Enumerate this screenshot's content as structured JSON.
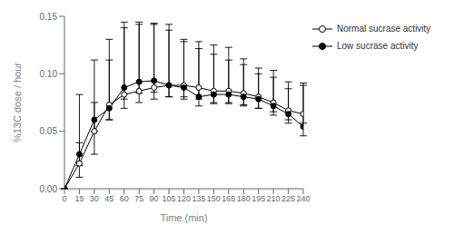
{
  "chart_data": {
    "type": "line",
    "xlabel": "Time (min)",
    "ylabel": "%13C dose / hour",
    "x": [
      0,
      15,
      30,
      45,
      60,
      75,
      90,
      105,
      120,
      135,
      150,
      165,
      180,
      195,
      210,
      225,
      240
    ],
    "xlim": [
      0,
      240
    ],
    "xticks": [
      0,
      15,
      30,
      45,
      60,
      75,
      90,
      105,
      120,
      135,
      150,
      165,
      180,
      195,
      210,
      225,
      240
    ],
    "ylim": [
      0.0,
      0.15
    ],
    "yticks": [
      {
        "value": 0.0,
        "label": "0.00"
      },
      0.05,
      {
        "value": 0.1,
        "label": "0.10"
      },
      0.15
    ],
    "grid": false,
    "legend": "right",
    "series": [
      {
        "name": "Normal sucrase activity",
        "color": "black",
        "marker": "open_circle",
        "line_style": "solid",
        "values": [
          0.0,
          0.022,
          0.05,
          0.073,
          0.082,
          0.085,
          0.088,
          0.09,
          0.09,
          0.088,
          0.085,
          0.085,
          0.083,
          0.08,
          0.075,
          0.068,
          0.065
        ],
        "error_low": [
          0.0,
          0.012,
          0.02,
          0.013,
          0.012,
          0.01,
          0.01,
          0.01,
          0.01,
          0.01,
          0.01,
          0.01,
          0.01,
          0.01,
          0.008,
          0.008,
          0.008
        ],
        "error_high": [
          0.0,
          0.06,
          0.062,
          0.057,
          0.063,
          0.058,
          0.055,
          0.053,
          0.04,
          0.04,
          0.04,
          0.038,
          0.03,
          0.025,
          0.028,
          0.025,
          0.025
        ]
      },
      {
        "name": "Low sucrase activity",
        "color": "black",
        "marker": "circle",
        "line_style": "solid",
        "values": [
          0.0,
          0.03,
          0.06,
          0.07,
          0.088,
          0.093,
          0.094,
          0.09,
          0.088,
          0.08,
          0.082,
          0.082,
          0.08,
          0.078,
          0.072,
          0.065,
          0.054
        ],
        "error_low": [
          0.0,
          0.01,
          0.01,
          0.01,
          0.01,
          0.01,
          0.01,
          0.01,
          0.01,
          0.008,
          0.008,
          0.008,
          0.008,
          0.008,
          0.008,
          0.008,
          0.008
        ],
        "error_high": [
          0.0,
          0.01,
          0.015,
          0.042,
          0.052,
          0.052,
          0.05,
          0.048,
          0.04,
          0.042,
          0.035,
          0.03,
          0.028,
          0.022,
          0.025,
          0.022,
          0.038
        ]
      }
    ]
  }
}
